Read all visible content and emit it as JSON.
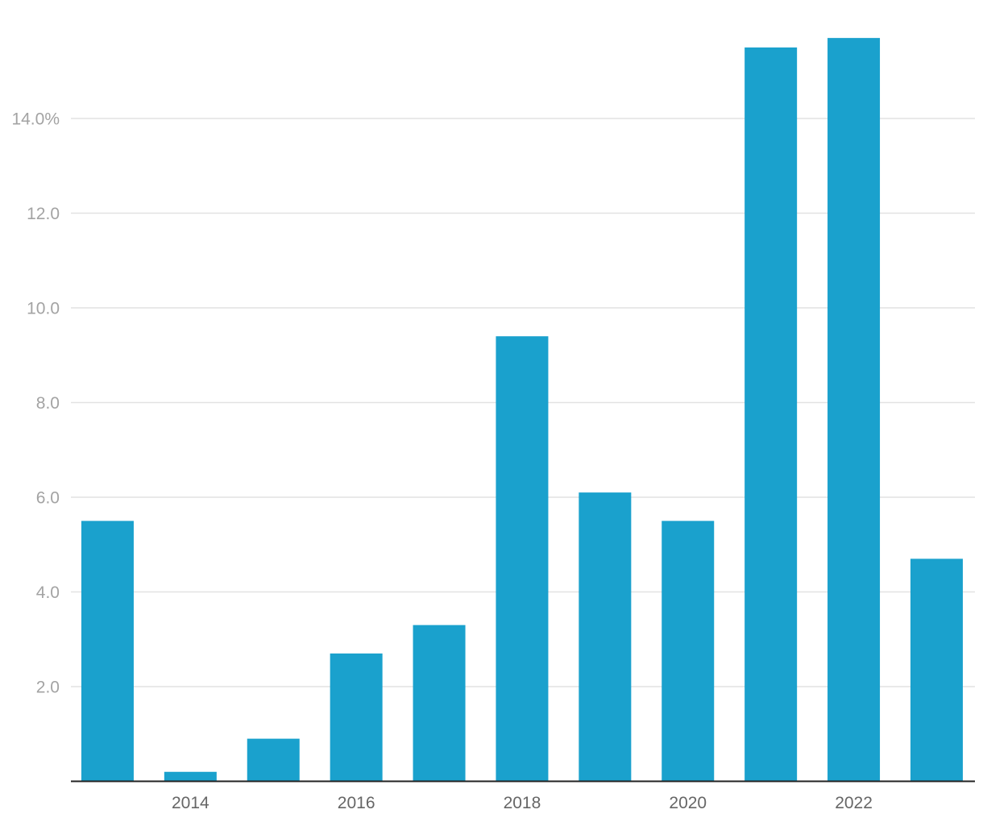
{
  "chart_data": {
    "type": "bar",
    "categories": [
      "2013",
      "2014",
      "2015",
      "2016",
      "2017",
      "2018",
      "2019",
      "2020",
      "2021",
      "2022",
      "2023"
    ],
    "values": [
      5.5,
      0.2,
      0.9,
      2.7,
      3.3,
      9.4,
      6.1,
      5.5,
      15.5,
      15.7,
      4.7
    ],
    "ylim": [
      0,
      15.7
    ],
    "y_ticks": [
      {
        "value": 2,
        "label": "2.0"
      },
      {
        "value": 4,
        "label": "4.0"
      },
      {
        "value": 6,
        "label": "6.0"
      },
      {
        "value": 8,
        "label": "8.0"
      },
      {
        "value": 10,
        "label": "10.0"
      },
      {
        "value": 12,
        "label": "12.0"
      },
      {
        "value": 14,
        "label": "14.0%"
      }
    ],
    "x_tick_labels": [
      "2014",
      "2016",
      "2018",
      "2020",
      "2022"
    ],
    "grid": true,
    "legend": "none",
    "colors": {
      "bar": "#1aa1cd",
      "grid": "#e2e2e2",
      "axis": "#222222",
      "y_tick_text": "#a3a3a3",
      "x_tick_text": "#666666"
    }
  }
}
